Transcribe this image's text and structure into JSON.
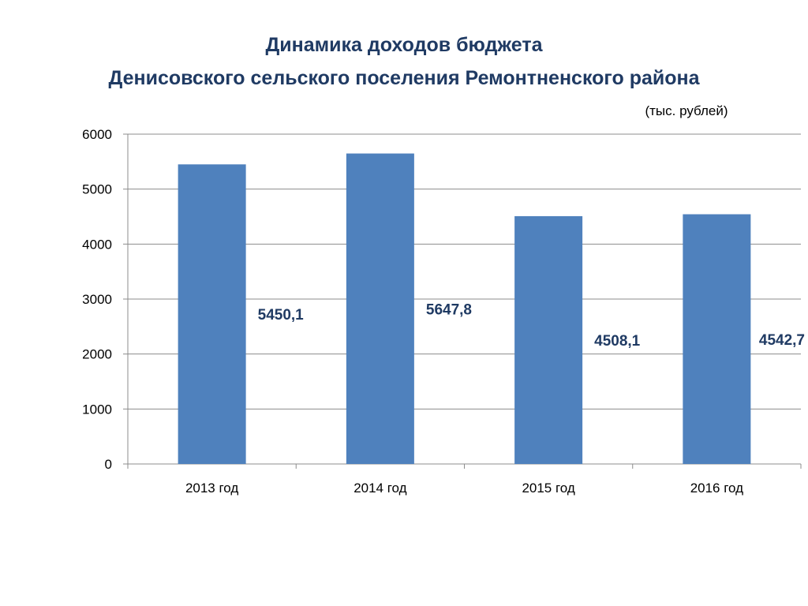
{
  "title_lines": [
    "Динамика доходов  бюджета",
    "Денисовского сельского поселения Ремонтненского района"
  ],
  "unit_label": "(тыс. рублей)",
  "colors": {
    "bar": "#4f81bd",
    "title": "#1f3a63",
    "grid": "#8c8c8c"
  },
  "chart_data": {
    "type": "bar",
    "title": "Динамика доходов  бюджета Денисовского сельского поселения Ремонтненского района",
    "categories": [
      "2013 год",
      "2014 год",
      "2015 год",
      "2016 год"
    ],
    "values": [
      5450.1,
      5647.8,
      4508.1,
      4542.7
    ],
    "data_labels": [
      "5450,1",
      "5647,8",
      "4508,1",
      "4542,7"
    ],
    "yticks": [
      0,
      1000,
      2000,
      3000,
      4000,
      5000,
      6000
    ],
    "ylim": [
      0,
      6000
    ],
    "xlabel": "",
    "ylabel": "",
    "grid": true,
    "legend": "none"
  }
}
